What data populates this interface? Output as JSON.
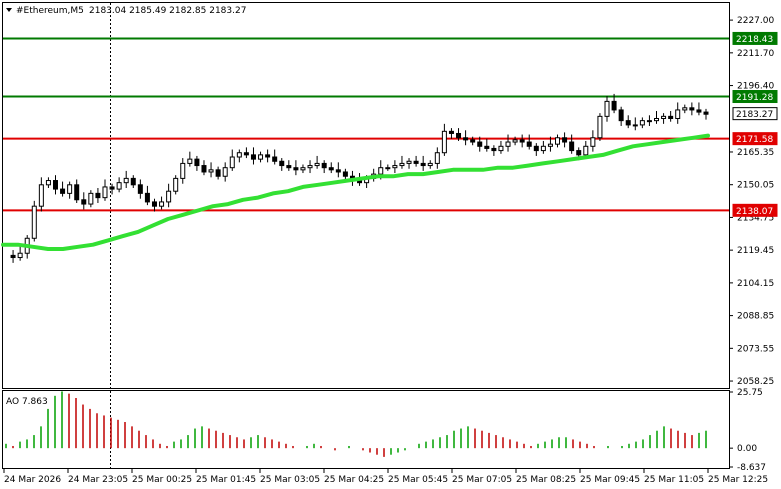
{
  "header": {
    "symbol": "#Ethereum,M5",
    "ohlc": "2183.04 2185.49 2182.85 2183.27"
  },
  "indicator": {
    "label": "AO 7.863",
    "ticks": [
      "25.75",
      "0.00",
      "-8.637"
    ]
  },
  "colors": {
    "candle": "#000000",
    "ma": "#33e033",
    "support_resistance": "#e00000",
    "target": "#007a00",
    "ao_up": "#00a000",
    "ao_down": "#c00000",
    "grid": "#000000",
    "current_price_tag": "#ffffff"
  },
  "chart_data": {
    "type": "candlestick",
    "y_axis_ticks": [
      "2227.00",
      "2211.70",
      "2196.40",
      "2165.35",
      "2150.05",
      "2134.75",
      "2119.45",
      "2104.15",
      "2088.85",
      "2073.55",
      "2058.25"
    ],
    "ylim": [
      2055,
      2235
    ],
    "x_axis_ticks": [
      "24 Mar 2026",
      "24 Mar 23:05",
      "25 Mar 00:25",
      "25 Mar 01:45",
      "25 Mar 03:05",
      "25 Mar 04:25",
      "25 Mar 05:45",
      "25 Mar 07:05",
      "25 Mar 08:25",
      "25 Mar 09:45",
      "25 Mar 11:05",
      "25 Mar 12:25"
    ],
    "levels": [
      {
        "value": 2218.43,
        "label": "2218.43",
        "kind": "target"
      },
      {
        "value": 2191.28,
        "label": "2191.28",
        "kind": "target"
      },
      {
        "value": 2183.27,
        "label": "2183.27",
        "kind": "current"
      },
      {
        "value": 2171.58,
        "label": "2171.58",
        "kind": "resistance"
      },
      {
        "value": 2138.07,
        "label": "2138.07",
        "kind": "support"
      }
    ],
    "price_path": [
      2117,
      2116,
      2118,
      2125,
      2140,
      2150,
      2152,
      2148,
      2146,
      2150,
      2143,
      2141,
      2146,
      2144,
      2149,
      2148,
      2151,
      2153,
      2150,
      2146,
      2142,
      2140,
      2142,
      2147,
      2153,
      2160,
      2162,
      2159,
      2156,
      2157,
      2154,
      2158,
      2163,
      2165,
      2164,
      2162,
      2164,
      2163,
      2161,
      2159,
      2158,
      2157,
      2158,
      2159,
      2160,
      2158,
      2157,
      2156,
      2154,
      2152,
      2151,
      2153,
      2155,
      2158,
      2158,
      2159,
      2160,
      2161,
      2160,
      2159,
      2160,
      2165,
      2175,
      2174,
      2172,
      2171,
      2170,
      2168,
      2167,
      2166,
      2168,
      2170,
      2171,
      2170,
      2168,
      2166,
      2168,
      2169,
      2172,
      2170,
      2166,
      2164,
      2168,
      2172,
      2182,
      2189,
      2185,
      2180,
      2178,
      2178,
      2180,
      2180,
      2181,
      2182,
      2181,
      2185,
      2186,
      2185,
      2184,
      2183
    ],
    "ma_path": [
      2122,
      2122,
      2121,
      2120,
      2120,
      2121,
      2122,
      2124,
      2126,
      2128,
      2131,
      2134,
      2136,
      2138,
      2140,
      2141,
      2143,
      2144,
      2146,
      2147,
      2149,
      2150,
      2151,
      2152,
      2153,
      2154,
      2154,
      2155,
      2155,
      2156,
      2157,
      2157,
      2157,
      2158,
      2158,
      2159,
      2160,
      2161,
      2162,
      2163,
      2164,
      2166,
      2168,
      2169,
      2170,
      2171,
      2172,
      2173
    ],
    "ao_values": [
      2,
      1,
      3,
      4,
      6,
      10,
      18,
      24,
      26,
      25,
      23,
      20,
      18,
      16,
      15,
      14,
      13,
      12,
      10,
      8,
      6,
      4,
      2,
      1,
      3,
      4,
      6,
      9,
      10,
      9,
      8,
      7,
      6,
      5,
      4,
      5,
      6,
      5,
      4,
      3,
      2,
      1,
      0,
      1,
      2,
      1,
      0,
      -1,
      0,
      1,
      0,
      -1,
      -2,
      -3,
      -4,
      -3,
      -2,
      -1,
      0,
      2,
      3,
      4,
      5,
      6,
      8,
      9,
      10,
      9,
      8,
      7,
      6,
      5,
      4,
      3,
      2,
      1,
      2,
      3,
      4,
      5,
      5,
      4,
      3,
      2,
      1,
      0,
      1,
      0,
      1,
      2,
      3,
      4,
      6,
      8,
      10,
      9,
      8,
      7,
      6,
      7,
      8
    ]
  }
}
